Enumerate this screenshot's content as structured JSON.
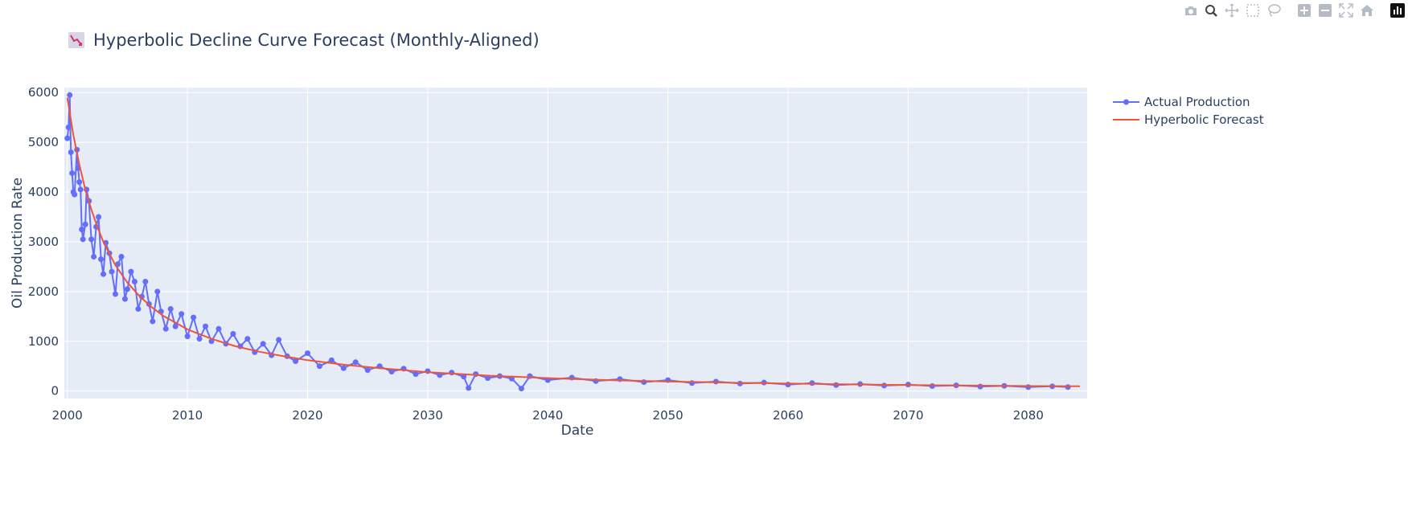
{
  "modebar": {
    "buttons": [
      {
        "name": "camera-icon",
        "group": 0
      },
      {
        "name": "zoom-icon",
        "group": 0,
        "active": true
      },
      {
        "name": "pan-icon",
        "group": 0
      },
      {
        "name": "box-select-icon",
        "group": 0
      },
      {
        "name": "lasso-select-icon",
        "group": 0
      },
      {
        "name": "zoom-in-icon",
        "group": 1
      },
      {
        "name": "zoom-out-icon",
        "group": 1
      },
      {
        "name": "autoscale-icon",
        "group": 1
      },
      {
        "name": "reset-axes-icon",
        "group": 1
      },
      {
        "name": "plotly-logo-icon",
        "group": 2
      }
    ]
  },
  "header": {
    "icon": "chart-decreasing-emoji-icon",
    "title": "Hyperbolic Decline Curve Forecast (Monthly-Aligned)"
  },
  "colors": {
    "plot_bg": "#e5ecf6",
    "grid": "#ffffff",
    "actual": "#636efa",
    "forecast": "#ef553b",
    "text": "#2a3f5f"
  },
  "chart_data": {
    "type": "line",
    "title": "Hyperbolic Decline Curve Forecast (Monthly-Aligned)",
    "xlabel": "Date",
    "ylabel": "Oil Production Rate",
    "xlim": [
      1999.75,
      2084.9
    ],
    "ylim": [
      -150,
      6100
    ],
    "x_ticks": [
      2000,
      2010,
      2020,
      2030,
      2040,
      2050,
      2060,
      2070,
      2080
    ],
    "x_tick_labels": [
      "2000",
      "2010",
      "2020",
      "2030",
      "2040",
      "2050",
      "2060",
      "2070",
      "2080"
    ],
    "y_ticks": [
      0,
      1000,
      2000,
      3000,
      4000,
      5000,
      6000
    ],
    "y_tick_labels": [
      "0",
      "1000",
      "2000",
      "3000",
      "4000",
      "5000",
      "6000"
    ],
    "grid": true,
    "legend_position": "top-right",
    "series": [
      {
        "name": "Actual Production",
        "mode": "lines+markers",
        "x": [
          2000.0,
          2000.1,
          2000.2,
          2000.3,
          2000.4,
          2000.5,
          2000.6,
          2000.8,
          2000.9,
          2001.0,
          2001.1,
          2001.2,
          2001.3,
          2001.5,
          2001.6,
          2001.8,
          2002.0,
          2002.2,
          2002.4,
          2002.6,
          2002.8,
          2003.0,
          2003.2,
          2003.5,
          2003.7,
          2004.0,
          2004.2,
          2004.5,
          2004.8,
          2005.0,
          2005.3,
          2005.6,
          2005.9,
          2006.2,
          2006.5,
          2006.8,
          2007.1,
          2007.5,
          2007.8,
          2008.2,
          2008.6,
          2009.0,
          2009.5,
          2010.0,
          2010.5,
          2011.0,
          2011.5,
          2012.0,
          2012.6,
          2013.2,
          2013.8,
          2014.4,
          2015.0,
          2015.6,
          2016.3,
          2017.0,
          2017.6,
          2018.3,
          2019.0,
          2020.0,
          2021.0,
          2022.0,
          2023.0,
          2024.0,
          2025.0,
          2026.0,
          2027.0,
          2028.0,
          2029.0,
          2030.0,
          2031.0,
          2032.0,
          2033.0,
          2033.4,
          2034.0,
          2035.0,
          2036.0,
          2037.0,
          2037.8,
          2038.5,
          2040.0,
          2042.0,
          2044.0,
          2046.0,
          2048.0,
          2050.0,
          2052.0,
          2054.0,
          2056.0,
          2058.0,
          2060.0,
          2062.0,
          2064.0,
          2066.0,
          2068.0,
          2070.0,
          2072.0,
          2074.0,
          2076.0,
          2078.0,
          2080.0,
          2082.0,
          2083.3
        ],
        "y": [
          5080,
          5300,
          5950,
          4800,
          4380,
          4000,
          3950,
          4850,
          4480,
          4200,
          4050,
          3250,
          3050,
          3350,
          4050,
          3820,
          3050,
          2700,
          3300,
          3500,
          2650,
          2350,
          2980,
          2770,
          2400,
          1950,
          2550,
          2700,
          1850,
          2050,
          2400,
          2200,
          1650,
          1900,
          2200,
          1750,
          1400,
          2000,
          1600,
          1250,
          1650,
          1300,
          1550,
          1100,
          1480,
          1050,
          1300,
          1000,
          1250,
          950,
          1150,
          900,
          1050,
          780,
          950,
          720,
          1030,
          700,
          600,
          760,
          500,
          620,
          460,
          580,
          420,
          500,
          390,
          450,
          340,
          400,
          320,
          370,
          290,
          60,
          340,
          260,
          300,
          250,
          50,
          300,
          220,
          270,
          200,
          240,
          180,
          220,
          160,
          190,
          150,
          170,
          130,
          160,
          120,
          140,
          110,
          130,
          100,
          115,
          90,
          105,
          80,
          95,
          80
        ]
      },
      {
        "name": "Hyperbolic Forecast",
        "mode": "lines",
        "x": [
          2000.0,
          2000.5,
          2001.0,
          2001.5,
          2002.0,
          2002.5,
          2003.0,
          2004.0,
          2005.0,
          2006.0,
          2007.0,
          2008.0,
          2010.0,
          2012.0,
          2014.0,
          2016.0,
          2018.0,
          2020.0,
          2023.0,
          2026.0,
          2030.0,
          2035.0,
          2040.0,
          2045.0,
          2050.0,
          2055.0,
          2060.0,
          2065.0,
          2070.0,
          2075.0,
          2080.0,
          2084.3
        ],
        "y": [
          5900,
          5150,
          4550,
          4050,
          3650,
          3300,
          3000,
          2530,
          2180,
          1910,
          1690,
          1510,
          1240,
          1050,
          900,
          790,
          700,
          620,
          530,
          460,
          380,
          310,
          260,
          220,
          190,
          170,
          150,
          135,
          122,
          110,
          100,
          95
        ]
      }
    ]
  }
}
